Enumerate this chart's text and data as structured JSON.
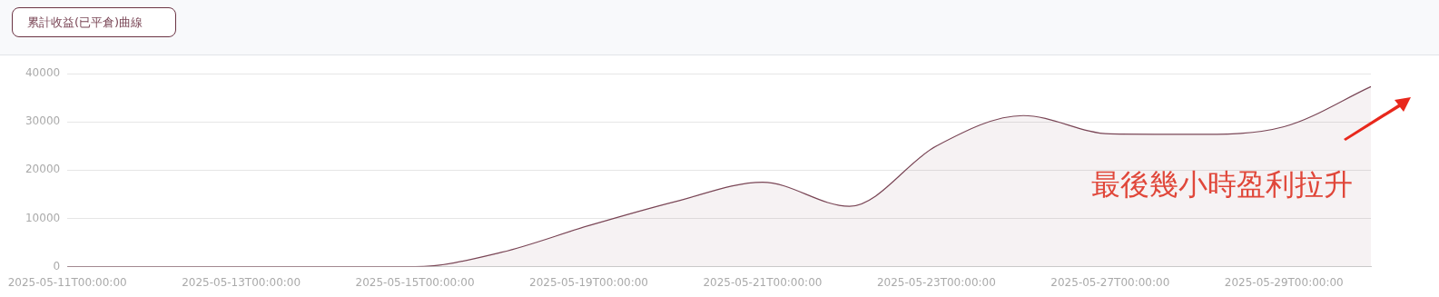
{
  "chart_data": {
    "type": "area",
    "title": "累計收益(已平倉)曲線",
    "categories": [
      "2025-05-11T00:00:00",
      null,
      "2025-05-13T00:00:00",
      null,
      "2025-05-15T00:00:00",
      null,
      "2025-05-19T00:00:00",
      null,
      "2025-05-21T00:00:00",
      null,
      "2025-05-23T00:00:00",
      null,
      "2025-05-27T00:00:00",
      null,
      "2025-05-29T00:00:00",
      null
    ],
    "series": [
      {
        "color": "#7a4656",
        "values": [
          0,
          0,
          0,
          0,
          0,
          3000,
          8500,
          13500,
          17500,
          12500,
          25000,
          31300,
          27500,
          27400,
          29000,
          37300
        ]
      }
    ],
    "ylim": [
      0,
      40000
    ],
    "yticks": [
      0,
      10000,
      20000,
      30000,
      40000
    ],
    "grid": "y",
    "legend": false,
    "marker": "none",
    "annotations": [
      "最後幾小時盈利拉升"
    ]
  }
}
